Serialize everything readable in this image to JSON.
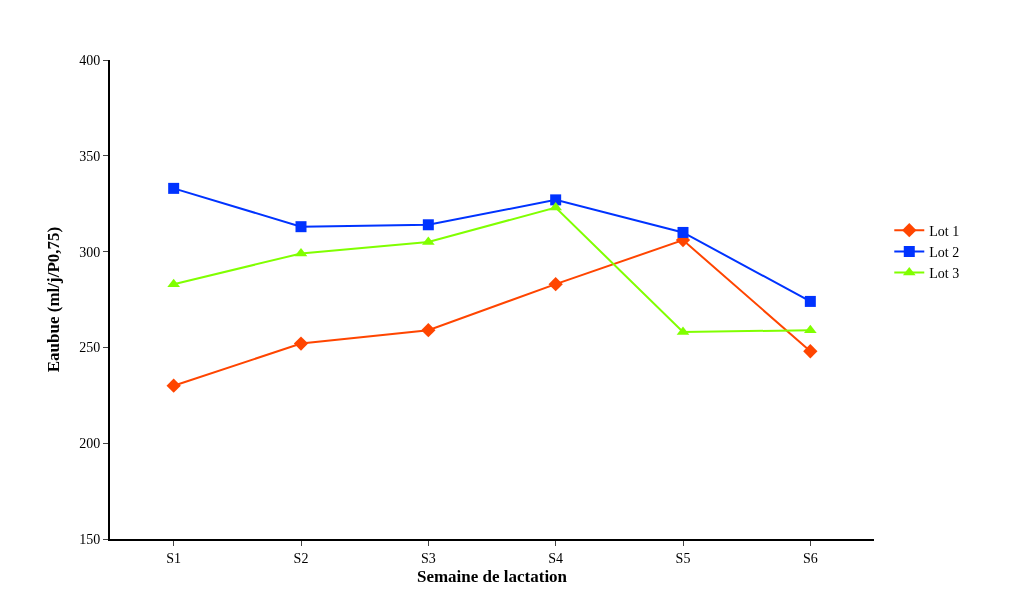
{
  "chart_data": {
    "type": "line",
    "xlabel": "Semaine de lactation",
    "ylabel": "Eaubue (ml/j/P0,75)",
    "categories": [
      "S1",
      "S2",
      "S3",
      "S4",
      "S5",
      "S6"
    ],
    "series": [
      {
        "name": "Lot 1",
        "color": "#ff4500",
        "marker": "diamond",
        "values": [
          230,
          252,
          259,
          283,
          306,
          248
        ]
      },
      {
        "name": "Lot 2",
        "color": "#0033ff",
        "marker": "square",
        "values": [
          333,
          313,
          314,
          327,
          310,
          274
        ]
      },
      {
        "name": "Lot 3",
        "color": "#80ff00",
        "marker": "triangle",
        "values": [
          283,
          299,
          305,
          323,
          258,
          259
        ]
      }
    ],
    "ylim": [
      150,
      400
    ],
    "yticks": [
      150,
      200,
      250,
      300,
      350,
      400
    ],
    "grid": false,
    "legend": "right",
    "line_style": "solid"
  }
}
